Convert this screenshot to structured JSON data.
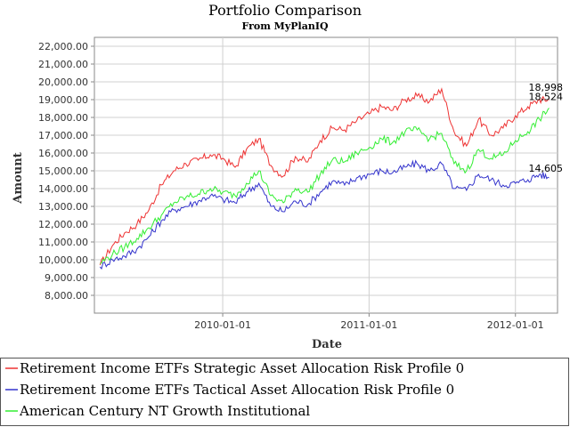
{
  "chart_data": {
    "type": "line",
    "title": "Portfolio Comparison",
    "subtitle": "From MyPlanIQ",
    "xlabel": "Date",
    "ylabel": "Amount",
    "ylim": [
      7000,
      22500
    ],
    "xlim": [
      "2009-02-15",
      "2012-04-15"
    ],
    "x_ticks": [
      "2010-01-01",
      "2011-01-01",
      "2012-01-01"
    ],
    "y_ticks": [
      8000,
      9000,
      10000,
      11000,
      12000,
      13000,
      14000,
      15000,
      16000,
      17000,
      18000,
      19000,
      20000,
      21000,
      22000
    ],
    "y_tick_labels": [
      "8,000.00",
      "9,000.00",
      "10,000.00",
      "11,000.00",
      "12,000.00",
      "13,000.00",
      "14,000.00",
      "15,000.00",
      "16,000.00",
      "17,000.00",
      "18,000.00",
      "19,000.00",
      "20,000.00",
      "21,000.00",
      "22,000.00"
    ],
    "grid": true,
    "legend_position": "bottom",
    "x": [
      "2009-03-01",
      "2009-04-01",
      "2009-05-01",
      "2009-06-01",
      "2009-07-01",
      "2009-08-01",
      "2009-09-01",
      "2009-10-01",
      "2009-11-01",
      "2009-12-01",
      "2010-01-01",
      "2010-02-01",
      "2010-03-01",
      "2010-04-01",
      "2010-05-01",
      "2010-06-01",
      "2010-07-01",
      "2010-08-01",
      "2010-09-01",
      "2010-10-01",
      "2010-11-01",
      "2010-12-01",
      "2011-01-01",
      "2011-02-01",
      "2011-03-01",
      "2011-04-01",
      "2011-05-01",
      "2011-06-01",
      "2011-07-01",
      "2011-08-01",
      "2011-09-01",
      "2011-10-01",
      "2011-11-01",
      "2011-12-01",
      "2012-01-01",
      "2012-02-01",
      "2012-03-01",
      "2012-03-25"
    ],
    "series": [
      {
        "name": "Retirement Income ETFs Strategic Asset Allocation Risk Profile 0",
        "color": "#ee3333",
        "values": [
          9700,
          10800,
          11500,
          12000,
          12800,
          14200,
          15000,
          15400,
          15600,
          15900,
          15700,
          15200,
          16200,
          16800,
          15300,
          14700,
          15800,
          15500,
          16700,
          17400,
          17300,
          17800,
          18200,
          18600,
          18400,
          19000,
          19200,
          18900,
          19600,
          17200,
          16400,
          17900,
          17000,
          17400,
          18100,
          18600,
          19000,
          18998
        ],
        "end_label": "18,998"
      },
      {
        "name": "Retirement Income ETFs Tactical Asset Allocation Risk Profile 0",
        "color": "#3333cc",
        "values": [
          9600,
          10000,
          10200,
          10600,
          11300,
          12200,
          12800,
          13000,
          13300,
          13600,
          13400,
          13200,
          13800,
          14300,
          13000,
          12700,
          13300,
          13100,
          13800,
          14400,
          14200,
          14600,
          14800,
          15000,
          14900,
          15200,
          15400,
          15000,
          15400,
          14000,
          13900,
          14800,
          14500,
          14200,
          14300,
          14500,
          14800,
          14605
        ],
        "end_label": "14,605"
      },
      {
        "name": "American Century NT Growth Institutional",
        "color": "#33ee33",
        "values": [
          9800,
          10300,
          10700,
          11200,
          11800,
          12500,
          13200,
          13500,
          13700,
          14000,
          13800,
          13600,
          14300,
          15000,
          13600,
          13200,
          14000,
          13800,
          14800,
          15600,
          15500,
          16000,
          16300,
          16800,
          16600,
          17200,
          17300,
          16800,
          17100,
          15400,
          15000,
          16200,
          15700,
          15900,
          16700,
          17200,
          17900,
          18524
        ],
        "end_label": "18,524"
      }
    ]
  }
}
